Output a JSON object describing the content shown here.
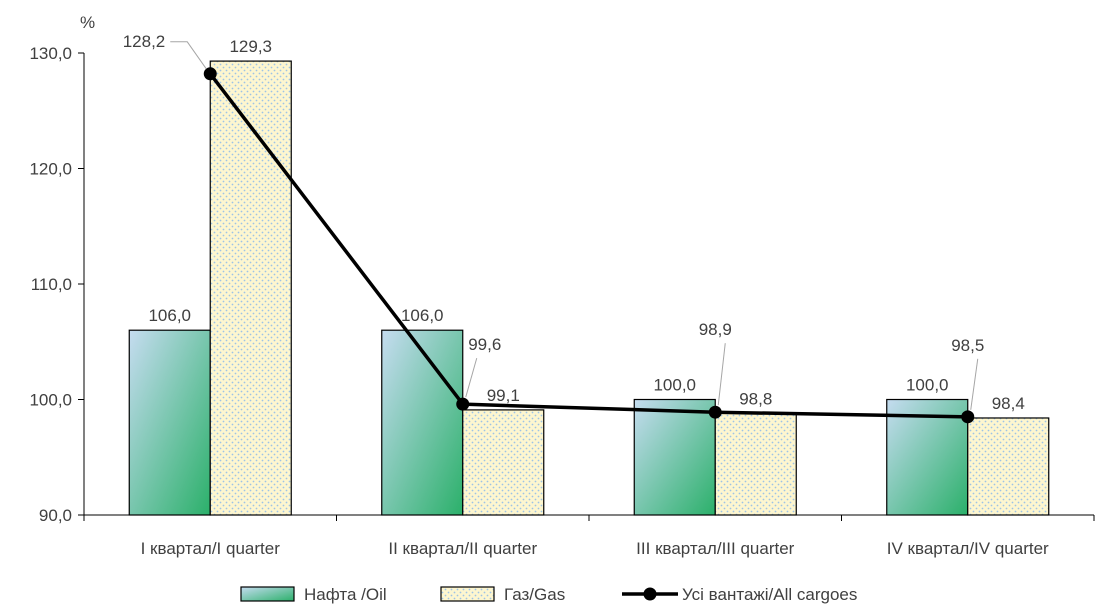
{
  "chart_data": {
    "type": "bar",
    "y_unit": "%",
    "ylim": [
      90,
      130
    ],
    "yticks": [
      "90,0",
      "100,0",
      "110,0",
      "120,0",
      "130,0"
    ],
    "ytick_values": [
      90,
      100,
      110,
      120,
      130
    ],
    "categories": [
      "I квартал/I quarter",
      "II квартал/II quarter",
      "III квартал/III quarter",
      "IV квартал/IV quarter"
    ],
    "series": [
      {
        "name": "Нафта /Oil",
        "kind": "bar",
        "values": [
          106.0,
          106.0,
          100.0,
          100.0
        ],
        "labels": [
          "106,0",
          "106,0",
          "100,0",
          "100,0"
        ],
        "colors": [
          "#c5dcf0",
          "#2bb06a"
        ]
      },
      {
        "name": "Газ/Gas",
        "kind": "bar",
        "values": [
          129.3,
          99.1,
          98.8,
          98.4
        ],
        "labels": [
          "129,3",
          "99,1",
          "98,8",
          "98,4"
        ],
        "colors": [
          "#fdf6cf",
          "#9dc3e6"
        ]
      },
      {
        "name": "Усі вантажі/All cargoes",
        "kind": "line",
        "values": [
          128.2,
          99.6,
          98.9,
          98.5
        ],
        "labels": [
          "128,2",
          "99,6",
          "98,9",
          "98,5"
        ],
        "colors": [
          "#000000"
        ]
      }
    ],
    "grid": false,
    "legend_position": "bottom"
  }
}
